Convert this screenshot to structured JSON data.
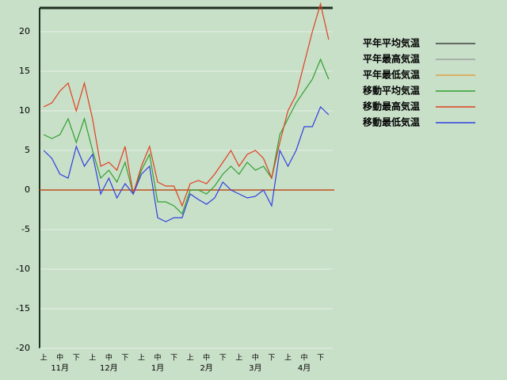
{
  "chart_data": {
    "type": "line",
    "categories": [
      "上",
      null,
      "中",
      null,
      "下",
      null,
      "上",
      null,
      "中",
      null,
      "下",
      null,
      "上",
      null,
      "中",
      null,
      "下",
      null,
      "上",
      null,
      "中",
      null,
      "下",
      null,
      "上",
      null,
      "中",
      null,
      "下",
      null,
      "上",
      null,
      "中",
      null,
      "下",
      null
    ],
    "months": [
      "11月",
      "12月",
      "1月",
      "2月",
      "3月",
      "4月"
    ],
    "ylim": [
      -20,
      23
    ],
    "yticks": [
      -20,
      -15,
      -10,
      -5,
      0,
      5,
      10,
      15,
      20
    ],
    "grid": true,
    "legend": "right",
    "series": [
      {
        "name": "平年平均気温",
        "color": "#404040",
        "values": [
          null,
          null,
          null,
          null,
          null,
          null,
          null,
          null,
          null,
          null,
          null,
          null,
          null,
          null,
          null,
          null,
          null,
          null,
          null,
          null,
          null,
          null,
          null,
          null,
          null,
          null,
          null,
          null,
          null,
          null,
          null,
          null,
          null,
          null,
          null,
          null
        ]
      },
      {
        "name": "平年最高気温",
        "color": "#a0a0a0",
        "values": [
          null,
          null,
          null,
          null,
          null,
          null,
          null,
          null,
          null,
          null,
          null,
          null,
          null,
          null,
          null,
          null,
          null,
          null,
          null,
          null,
          null,
          null,
          null,
          null,
          null,
          null,
          null,
          null,
          null,
          null,
          null,
          null,
          null,
          null,
          null,
          null
        ]
      },
      {
        "name": "平年最低気温",
        "color": "#e0a040",
        "values": [
          null,
          null,
          null,
          null,
          null,
          null,
          null,
          null,
          null,
          null,
          null,
          null,
          null,
          null,
          null,
          null,
          null,
          null,
          null,
          null,
          null,
          null,
          null,
          null,
          null,
          null,
          null,
          null,
          null,
          null,
          null,
          null,
          null,
          null,
          null,
          null
        ]
      },
      {
        "name": "移動平均気温",
        "color": "#30a030",
        "values": [
          7,
          6.5,
          7,
          9,
          6,
          9,
          5,
          1.5,
          2.5,
          1,
          3.5,
          -0.5,
          2.5,
          4.5,
          -1.5,
          -1.5,
          -2,
          -3,
          0,
          0,
          -0.5,
          0.5,
          2,
          3,
          2,
          3.5,
          2.5,
          3,
          1.5,
          7,
          9,
          11,
          12.5,
          14,
          16.5,
          14
        ]
      },
      {
        "name": "移動最高気温",
        "color": "#e04020",
        "values": [
          10.5,
          11,
          12.5,
          13.5,
          10,
          13.5,
          9,
          3,
          3.5,
          2.5,
          5.5,
          -0.5,
          3,
          5.5,
          1,
          0.5,
          0.5,
          -2,
          0.8,
          1.2,
          0.8,
          2,
          3.5,
          5,
          3,
          4.5,
          5,
          4,
          1.5,
          6,
          10,
          12,
          16,
          20,
          23.5,
          19
        ]
      },
      {
        "name": "移動最低気温",
        "color": "#3040e0",
        "values": [
          5,
          4,
          2,
          1.5,
          5.5,
          3,
          4.5,
          -0.5,
          1.5,
          -1,
          0.8,
          -0.5,
          2,
          3,
          -3.5,
          -4,
          -3.5,
          -3.5,
          -0.5,
          -1.2,
          -1.8,
          -1,
          1,
          0,
          -0.5,
          -1,
          -0.8,
          0,
          -2,
          5,
          3,
          5,
          8,
          8,
          10.5,
          9.5
        ]
      }
    ]
  }
}
